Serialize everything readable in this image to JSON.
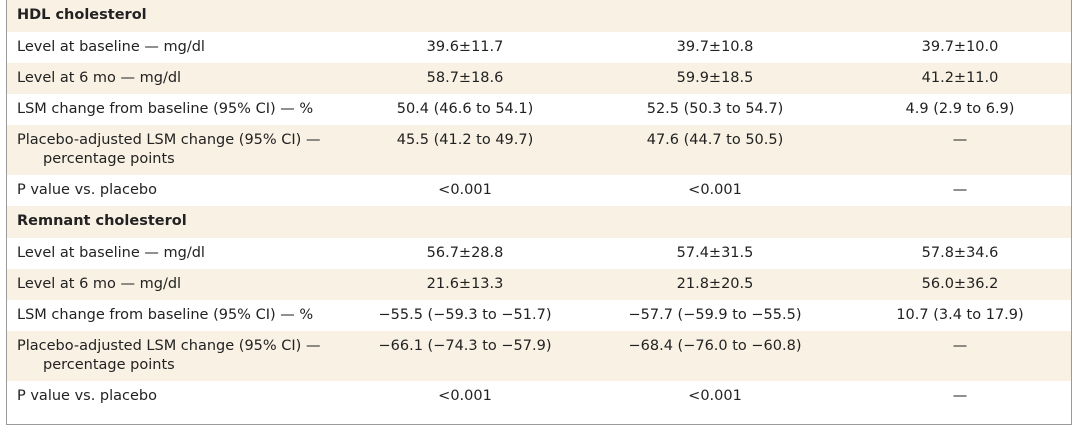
{
  "sections": [
    {
      "title": "HDL cholesterol",
      "rows": [
        {
          "label": [
            "Level at baseline — mg/dl"
          ],
          "values": [
            "39.6±11.7",
            "39.7±10.8",
            "39.7±10.0"
          ]
        },
        {
          "label": [
            "Level at 6 mo — mg/dl"
          ],
          "values": [
            "58.7±18.6",
            "59.9±18.5",
            "41.2±11.0"
          ]
        },
        {
          "label": [
            "LSM change from baseline (95% CI) — %"
          ],
          "values": [
            "50.4 (46.6 to 54.1)",
            "52.5 (50.3 to 54.7)",
            "4.9 (2.9 to 6.9)"
          ]
        },
        {
          "label": [
            "Placebo-adjusted LSM change (95% CI) —",
            "percentage points"
          ],
          "values": [
            "45.5 (41.2 to 49.7)",
            "47.6 (44.7 to 50.5)",
            "—"
          ]
        },
        {
          "label": [
            "P value vs. placebo"
          ],
          "values": [
            "<0.001",
            "<0.001",
            "—"
          ]
        }
      ]
    },
    {
      "title": "Remnant cholesterol",
      "rows": [
        {
          "label": [
            "Level at baseline — mg/dl"
          ],
          "values": [
            "56.7±28.8",
            "57.4±31.5",
            "57.8±34.6"
          ]
        },
        {
          "label": [
            "Level at 6 mo — mg/dl"
          ],
          "values": [
            "21.6±13.3",
            "21.8±20.5",
            "56.0±36.2"
          ]
        },
        {
          "label": [
            "LSM change from baseline (95% CI) — %"
          ],
          "values": [
            "−55.5 (−59.3 to −51.7)",
            "−57.7 (−59.9 to −55.5)",
            "10.7 (3.4 to 17.9)"
          ]
        },
        {
          "label": [
            "Placebo-adjusted LSM change (95% CI) —",
            "percentage points"
          ],
          "values": [
            "−66.1 (−74.3 to −57.9)",
            "−68.4 (−76.0 to −60.8)",
            "—"
          ]
        },
        {
          "label": [
            "P value vs. placebo"
          ],
          "values": [
            "<0.001",
            "<0.001",
            "—"
          ]
        }
      ]
    }
  ]
}
